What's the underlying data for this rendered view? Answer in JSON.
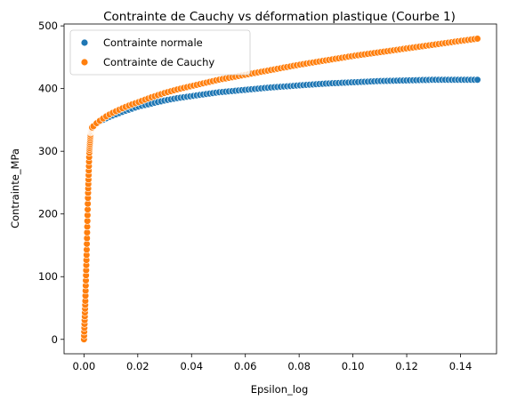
{
  "chart_data": {
    "type": "scatter",
    "title": "Contrainte de Cauchy vs déformation plastique (Courbe 1)",
    "xlabel": "Epsilon_log",
    "ylabel": "Contrainte_MPa",
    "xlim": [
      -0.0074,
      0.1534
    ],
    "ylim": [
      -23,
      503
    ],
    "xticks": [
      0.0,
      0.02,
      0.04,
      0.06,
      0.08,
      0.1,
      0.12,
      0.14
    ],
    "xtick_labels": [
      "0.00",
      "0.02",
      "0.04",
      "0.06",
      "0.08",
      "0.10",
      "0.12",
      "0.14"
    ],
    "yticks": [
      0,
      100,
      200,
      300,
      400,
      500
    ],
    "ytick_labels": [
      "0",
      "100",
      "200",
      "300",
      "400",
      "500"
    ],
    "grid": false,
    "legend": "top-left",
    "series": [
      {
        "name": "Contrainte normale",
        "color": "#1f77b4",
        "x": [
          0.0,
          0.0005,
          0.001,
          0.0015,
          0.002,
          0.0025,
          0.003,
          0.004,
          0.005,
          0.006,
          0.008,
          0.01,
          0.012,
          0.015,
          0.018,
          0.02,
          0.025,
          0.03,
          0.035,
          0.04,
          0.045,
          0.05,
          0.055,
          0.06,
          0.07,
          0.08,
          0.09,
          0.1,
          0.11,
          0.12,
          0.13,
          0.14,
          0.147
        ],
        "y": [
          0,
          60,
          140,
          230,
          300,
          330,
          338,
          342,
          345,
          348,
          352,
          356,
          359,
          364,
          368,
          371,
          376,
          381,
          385,
          388,
          391,
          394,
          396,
          398,
          402,
          405,
          408,
          410,
          412,
          413,
          414,
          414,
          414
        ]
      },
      {
        "name": "Contrainte de Cauchy",
        "color": "#ff7f0e",
        "x": [
          0.0,
          0.0005,
          0.001,
          0.0015,
          0.002,
          0.0025,
          0.003,
          0.004,
          0.005,
          0.006,
          0.008,
          0.01,
          0.012,
          0.015,
          0.018,
          0.02,
          0.025,
          0.03,
          0.035,
          0.04,
          0.045,
          0.05,
          0.055,
          0.06,
          0.07,
          0.08,
          0.09,
          0.1,
          0.11,
          0.12,
          0.13,
          0.14,
          0.147
        ],
        "y": [
          0,
          60,
          140,
          230,
          300,
          330,
          338,
          342,
          346,
          349,
          355,
          360,
          364,
          370,
          375,
          378,
          386,
          393,
          399,
          404,
          409,
          414,
          418,
          422,
          430,
          438,
          445,
          452,
          458,
          464,
          470,
          476,
          480
        ]
      }
    ]
  }
}
